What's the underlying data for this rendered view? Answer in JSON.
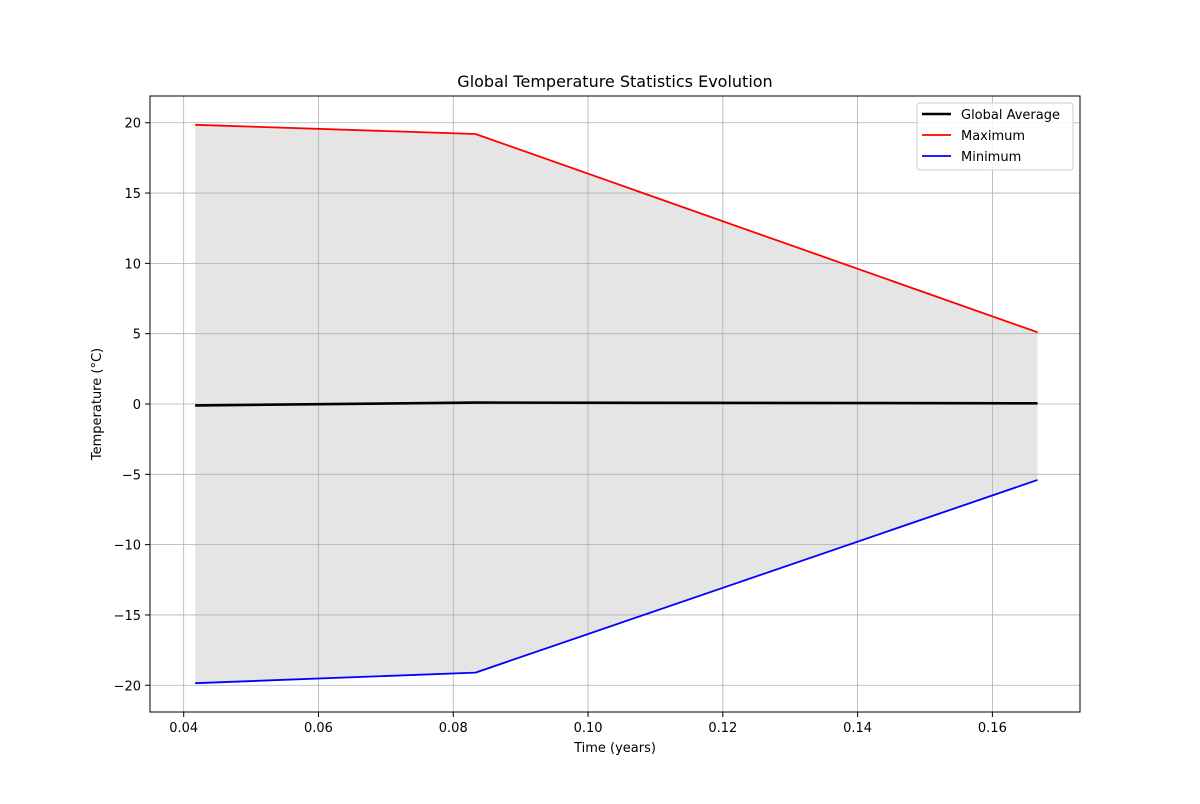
{
  "chart_data": {
    "type": "line",
    "title": "Global Temperature Statistics Evolution",
    "xlabel": "Time (years)",
    "ylabel": "Temperature (°C)",
    "x": [
      0.0417,
      0.0833,
      0.1667
    ],
    "xlim": [
      0.035,
      0.173
    ],
    "ylim": [
      -21.9,
      21.9
    ],
    "x_ticks": [
      0.04,
      0.06,
      0.08,
      0.1,
      0.12,
      0.14,
      0.16
    ],
    "x_tick_labels": [
      "0.04",
      "0.06",
      "0.08",
      "0.10",
      "0.12",
      "0.14",
      "0.16"
    ],
    "y_ticks": [
      -20,
      -15,
      -10,
      -5,
      0,
      5,
      10,
      15,
      20
    ],
    "y_tick_labels": [
      "−20",
      "−15",
      "−10",
      "−5",
      "0",
      "5",
      "10",
      "15",
      "20"
    ],
    "grid": true,
    "legend_position": "top-right",
    "series": [
      {
        "name": "Global Average",
        "values": [
          -0.1,
          0.1,
          0.05
        ],
        "color": "#000000",
        "style": "thick"
      },
      {
        "name": "Maximum",
        "values": [
          19.85,
          19.2,
          5.1
        ],
        "color": "#ff0000",
        "style": "normal"
      },
      {
        "name": "Minimum",
        "values": [
          -19.85,
          -19.1,
          -5.4
        ],
        "color": "#0000ff",
        "style": "normal"
      }
    ],
    "band": {
      "between": [
        "Minimum",
        "Maximum"
      ],
      "color": "#e5e5e5"
    }
  }
}
